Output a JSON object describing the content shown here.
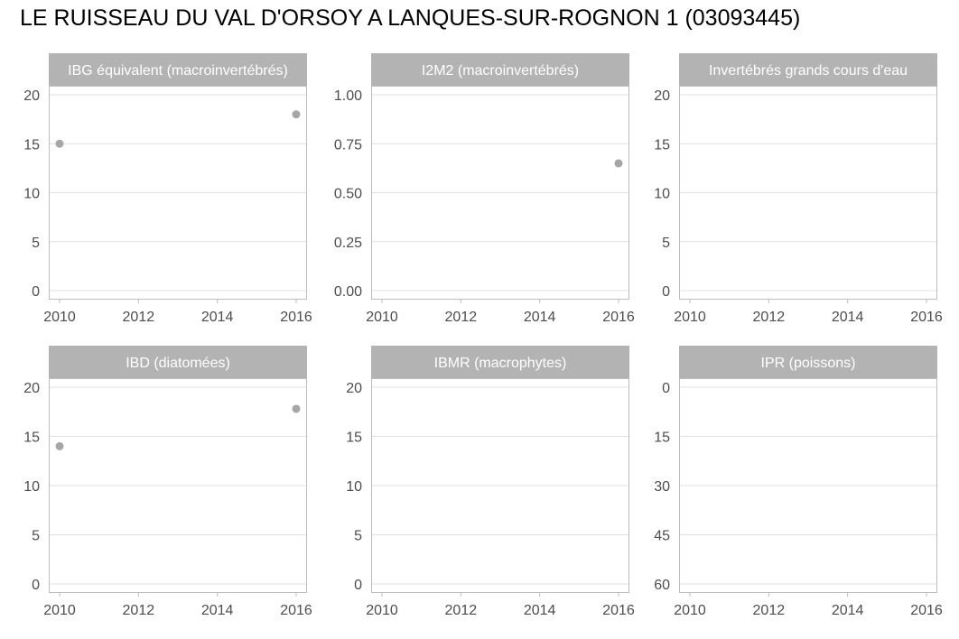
{
  "title": "LE RUISSEAU DU VAL D'ORSOY A LANQUES-SUR-ROGNON 1 (03093445)",
  "colors": {
    "strip": "#b3b3b3",
    "point": "#a6a6a6",
    "grid": "#e0e0e0",
    "border": "#bdbdbd",
    "tick_text": "#4d4d4d",
    "strip_text": "#ffffff"
  },
  "chart_data": [
    {
      "type": "scatter",
      "title": "IBG équivalent (macroinvertébrés)",
      "x_ticks": [
        2010,
        2012,
        2014,
        2016
      ],
      "y_ticks": [
        0,
        5,
        10,
        15,
        20
      ],
      "y_tick_labels": [
        "0",
        "5",
        "10",
        "15",
        "20"
      ],
      "xlim": [
        2010,
        2016
      ],
      "ylim": [
        0,
        20
      ],
      "y_reversed": false,
      "points": [
        {
          "x": 2010,
          "y": 15
        },
        {
          "x": 2016,
          "y": 18
        }
      ]
    },
    {
      "type": "scatter",
      "title": "I2M2 (macroinvertébrés)",
      "x_ticks": [
        2010,
        2012,
        2014,
        2016
      ],
      "y_ticks": [
        0,
        0.25,
        0.5,
        0.75,
        1
      ],
      "y_tick_labels": [
        "0.00",
        "0.25",
        "0.50",
        "0.75",
        "1.00"
      ],
      "xlim": [
        2010,
        2016
      ],
      "ylim": [
        0,
        1
      ],
      "y_reversed": false,
      "points": [
        {
          "x": 2016,
          "y": 0.65
        }
      ]
    },
    {
      "type": "scatter",
      "title": "Invertébrés grands cours d'eau",
      "x_ticks": [
        2010,
        2012,
        2014,
        2016
      ],
      "y_ticks": [
        0,
        5,
        10,
        15,
        20
      ],
      "y_tick_labels": [
        "0",
        "5",
        "10",
        "15",
        "20"
      ],
      "xlim": [
        2010,
        2016
      ],
      "ylim": [
        0,
        20
      ],
      "y_reversed": false,
      "points": []
    },
    {
      "type": "scatter",
      "title": "IBD (diatomées)",
      "x_ticks": [
        2010,
        2012,
        2014,
        2016
      ],
      "y_ticks": [
        0,
        5,
        10,
        15,
        20
      ],
      "y_tick_labels": [
        "0",
        "5",
        "10",
        "15",
        "20"
      ],
      "xlim": [
        2010,
        2016
      ],
      "ylim": [
        0,
        20
      ],
      "y_reversed": false,
      "points": [
        {
          "x": 2010,
          "y": 14
        },
        {
          "x": 2016,
          "y": 17.8
        }
      ]
    },
    {
      "type": "scatter",
      "title": "IBMR (macrophytes)",
      "x_ticks": [
        2010,
        2012,
        2014,
        2016
      ],
      "y_ticks": [
        0,
        5,
        10,
        15,
        20
      ],
      "y_tick_labels": [
        "0",
        "5",
        "10",
        "15",
        "20"
      ],
      "xlim": [
        2010,
        2016
      ],
      "ylim": [
        0,
        20
      ],
      "y_reversed": false,
      "points": []
    },
    {
      "type": "scatter",
      "title": "IPR (poissons)",
      "x_ticks": [
        2010,
        2012,
        2014,
        2016
      ],
      "y_ticks": [
        0,
        15,
        30,
        45,
        60
      ],
      "y_tick_labels": [
        "0",
        "15",
        "30",
        "45",
        "60"
      ],
      "xlim": [
        2010,
        2016
      ],
      "ylim": [
        0,
        60
      ],
      "y_reversed": true,
      "points": []
    }
  ]
}
